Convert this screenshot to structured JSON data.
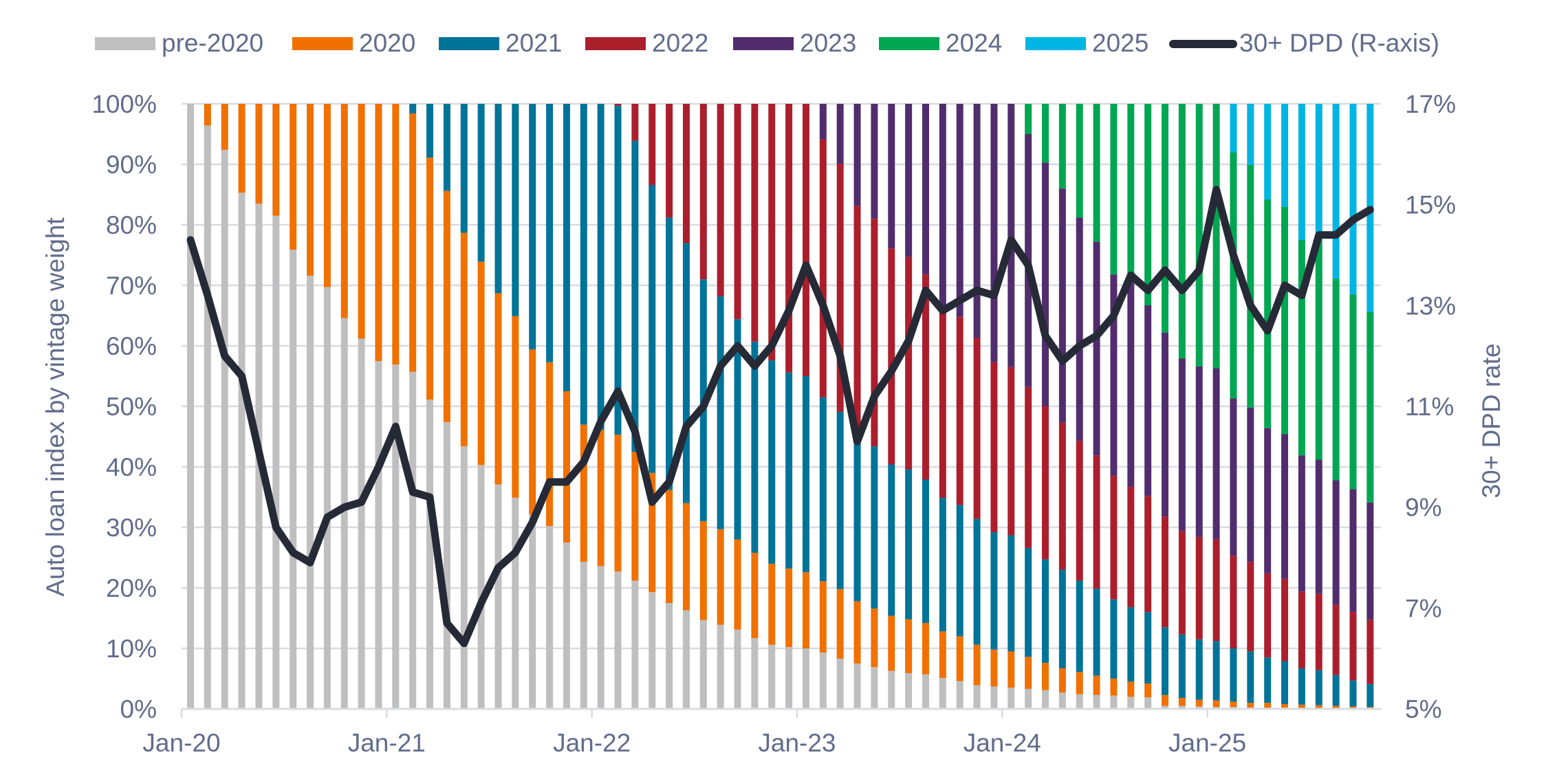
{
  "chart_data": {
    "type": "bar",
    "stacked": true,
    "secondary_type": "line",
    "title": "",
    "ylabel": "Auto loan index by vintage weight",
    "y2label": "30+ DPD rate",
    "xlabel": "",
    "ylim": [
      0,
      100
    ],
    "y2lim": [
      5,
      17
    ],
    "yticks": [
      "0%",
      "10%",
      "20%",
      "30%",
      "40%",
      "50%",
      "60%",
      "70%",
      "80%",
      "90%",
      "100%"
    ],
    "y2ticks": [
      "5%",
      "7%",
      "9%",
      "11%",
      "13%",
      "15%",
      "17%"
    ],
    "grid": true,
    "legend_position": "top",
    "x_start": "Jan-20",
    "x_end": "Oct-25",
    "x_frequency": "monthly",
    "xtick_labels": [
      {
        "index": 0,
        "label": "Jan-20"
      },
      {
        "index": 12,
        "label": "Jan-21"
      },
      {
        "index": 24,
        "label": "Jan-22"
      },
      {
        "index": 36,
        "label": "Jan-23"
      },
      {
        "index": 48,
        "label": "Jan-24"
      },
      {
        "index": 60,
        "label": "Jan-25"
      }
    ],
    "series": [
      {
        "name": "pre-2020",
        "color": "#bfbfbf",
        "values": [
          100,
          96.4,
          92.4,
          85.3,
          83.5,
          81.5,
          75.9,
          71.6,
          69.7,
          64.6,
          61.2,
          57.5,
          56.9,
          55.7,
          51.1,
          47.4,
          43.4,
          40.3,
          37.1,
          34.9,
          32.1,
          30.2,
          27.5,
          24.3,
          23.6,
          22.7,
          21.2,
          19.3,
          17.5,
          16.3,
          14.7,
          13.9,
          13.1,
          11.7,
          10.6,
          10.2,
          10.0,
          9.3,
          8.3,
          7.5,
          6.9,
          6.3,
          5.9,
          5.7,
          5.1,
          4.6,
          3.9,
          3.7,
          3.5,
          3.3,
          3.1,
          2.7,
          2.4,
          2.3,
          2.2,
          2.0,
          1.9,
          0.5,
          0.5,
          0.4,
          0.3,
          0.3,
          0.2,
          0.2,
          0.2,
          0.1,
          0.1,
          0.1,
          0.1,
          0.1
        ]
      },
      {
        "name": "2020",
        "color": "#f07000",
        "values": [
          0,
          3.6,
          7.6,
          14.7,
          16.5,
          18.5,
          24.1,
          28.4,
          30.3,
          35.4,
          38.8,
          42.5,
          43.1,
          42.7,
          40.0,
          38.2,
          35.3,
          33.6,
          31.6,
          30.0,
          27.3,
          27.1,
          25.0,
          22.7,
          22.5,
          22.6,
          21.3,
          19.7,
          18.7,
          17.7,
          16.3,
          15.8,
          14.9,
          14.1,
          13.4,
          13.0,
          12.6,
          11.8,
          11.5,
          10.3,
          9.7,
          9.1,
          8.9,
          8.5,
          7.7,
          7.4,
          6.7,
          6.1,
          6.0,
          5.3,
          4.5,
          4.0,
          3.7,
          3.2,
          2.8,
          2.5,
          2.3,
          1.8,
          1.3,
          1.1,
          1.1,
          0.9,
          0.8,
          0.8,
          0.6,
          0.6,
          0.5,
          0.4,
          0.3,
          0.2
        ]
      },
      {
        "name": "2021",
        "color": "#007398",
        "values": [
          0,
          0,
          0,
          0,
          0,
          0,
          0,
          0,
          0,
          0,
          0,
          0,
          0,
          1.6,
          8.9,
          14.4,
          21.3,
          26.1,
          31.3,
          35.1,
          40.6,
          42.7,
          47.5,
          53.0,
          53.9,
          54.4,
          51.4,
          47.6,
          45.0,
          43.0,
          40.0,
          38.5,
          36.4,
          34.9,
          33.6,
          32.4,
          32.4,
          30.4,
          29.3,
          26.2,
          26.8,
          25.0,
          24.8,
          23.7,
          22.1,
          21.7,
          20.8,
          19.4,
          19.2,
          18.0,
          17.1,
          16.3,
          15.1,
          14.4,
          13.1,
          12.3,
          11.8,
          11.2,
          10.5,
          10.0,
          9.8,
          8.8,
          8.5,
          7.5,
          7.1,
          6.0,
          5.8,
          5.1,
          4.3,
          3.8
        ]
      },
      {
        "name": "2022",
        "color": "#ab1f2d",
        "values": [
          0,
          0,
          0,
          0,
          0,
          0,
          0,
          0,
          0,
          0,
          0,
          0,
          0,
          0,
          0,
          0,
          0,
          0,
          0,
          0,
          0,
          0,
          0,
          0,
          0,
          0.3,
          6.1,
          13.4,
          18.8,
          23.0,
          29.0,
          31.8,
          35.6,
          39.3,
          42.4,
          44.4,
          45.0,
          42.6,
          41.0,
          39.1,
          37.6,
          35.7,
          35.1,
          33.9,
          30.9,
          31.1,
          29.9,
          28.1,
          27.8,
          26.6,
          25.3,
          24.3,
          23.1,
          22.0,
          20.4,
          19.9,
          19.2,
          18.3,
          17.1,
          16.9,
          16.8,
          15.3,
          14.8,
          13.9,
          13.6,
          12.7,
          12.6,
          11.6,
          11.3,
          10.6
        ]
      },
      {
        "name": "2023",
        "color": "#512d6d",
        "values": [
          0,
          0,
          0,
          0,
          0,
          0,
          0,
          0,
          0,
          0,
          0,
          0,
          0,
          0,
          0,
          0,
          0,
          0,
          0,
          0,
          0,
          0,
          0,
          0,
          0,
          0,
          0,
          0,
          0,
          0,
          0,
          0,
          0,
          0,
          0,
          0,
          0,
          5.9,
          9.9,
          16.9,
          19.0,
          23.9,
          25.3,
          28.2,
          34.2,
          35.2,
          38.7,
          42.7,
          43.5,
          41.8,
          40.3,
          38.7,
          36.9,
          35.3,
          33.3,
          33.9,
          31.5,
          30.4,
          28.5,
          28.2,
          28.3,
          26.0,
          25.5,
          24.0,
          23.9,
          22.5,
          22.2,
          20.6,
          20.3,
          19.4
        ]
      },
      {
        "name": "2024",
        "color": "#00a651",
        "values": [
          0,
          0,
          0,
          0,
          0,
          0,
          0,
          0,
          0,
          0,
          0,
          0,
          0,
          0,
          0,
          0,
          0,
          0,
          0,
          0,
          0,
          0,
          0,
          0,
          0,
          0,
          0,
          0,
          0,
          0,
          0,
          0,
          0,
          0,
          0,
          0,
          0,
          0,
          0,
          0,
          0,
          0,
          0,
          0,
          0,
          0,
          0,
          0,
          0,
          5.0,
          9.7,
          14.0,
          18.8,
          22.8,
          28.2,
          29.4,
          33.3,
          37.8,
          42.1,
          43.4,
          43.7,
          40.7,
          40.1,
          37.8,
          37.6,
          35.6,
          36.6,
          33.3,
          32.2,
          31.5
        ]
      },
      {
        "name": "2025",
        "color": "#00b5e2",
        "values": [
          0,
          0,
          0,
          0,
          0,
          0,
          0,
          0,
          0,
          0,
          0,
          0,
          0,
          0,
          0,
          0,
          0,
          0,
          0,
          0,
          0,
          0,
          0,
          0,
          0,
          0,
          0,
          0,
          0,
          0,
          0,
          0,
          0,
          0,
          0,
          0,
          0,
          0,
          0,
          0,
          0,
          0,
          0,
          0,
          0,
          0,
          0,
          0,
          0,
          0,
          0,
          0,
          0,
          0,
          0,
          0,
          0,
          0,
          0,
          0,
          0,
          8.0,
          10.1,
          15.8,
          17.0,
          22.5,
          22.2,
          28.9,
          31.5,
          34.4
        ]
      }
    ],
    "line_series": {
      "name": "30+ DPD (R-axis)",
      "color": "#262a36",
      "axis": "right",
      "values": [
        14.3,
        13.2,
        12.0,
        11.6,
        10.1,
        8.6,
        8.1,
        7.9,
        8.8,
        9.0,
        9.1,
        9.8,
        10.6,
        9.3,
        9.2,
        6.7,
        6.3,
        7.1,
        7.8,
        8.1,
        8.7,
        9.5,
        9.5,
        9.9,
        10.7,
        11.3,
        10.5,
        9.1,
        9.5,
        10.6,
        11.0,
        11.8,
        12.2,
        11.8,
        12.2,
        12.9,
        13.8,
        13.0,
        12.0,
        10.3,
        11.2,
        11.7,
        12.3,
        13.3,
        12.9,
        13.1,
        13.3,
        13.2,
        14.3,
        13.8,
        12.4,
        11.9,
        12.2,
        12.4,
        12.8,
        13.6,
        13.3,
        13.7,
        13.3,
        13.7,
        15.3,
        14.0,
        13.0,
        12.5,
        13.4,
        13.2,
        14.4,
        14.4,
        14.7,
        14.9
      ]
    },
    "legend": [
      "pre-2020",
      "2020",
      "2021",
      "2022",
      "2023",
      "2024",
      "2025",
      "30+ DPD (R-axis)"
    ],
    "colors": {
      "axis_text": "#616c8b",
      "gridline": "#d9dbe3",
      "axis_line": "#d9dbe3"
    }
  }
}
